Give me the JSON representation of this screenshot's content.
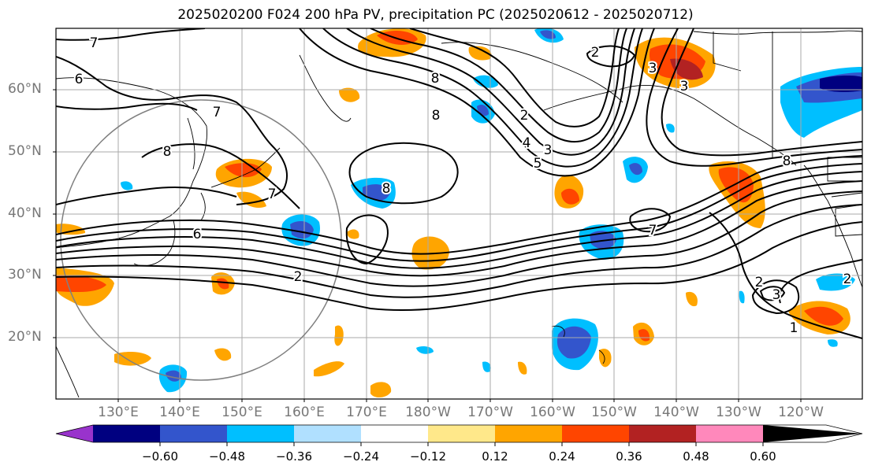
{
  "title": "2025020200 F024 200 hPa PV, precipitation PC (2025020612 - 2025020712)",
  "lat_labels": [
    "60°N",
    "50°N",
    "40°N",
    "30°N",
    "20°N"
  ],
  "lon_labels": [
    "130°E",
    "140°E",
    "150°E",
    "160°E",
    "170°E",
    "180°W",
    "170°W",
    "160°W",
    "150°W",
    "140°W",
    "130°W",
    "120°W"
  ],
  "colorbar": {
    "ticks": [
      "−0.60",
      "−0.48",
      "−0.36",
      "−0.24",
      "−0.12",
      "0.12",
      "0.24",
      "0.36",
      "0.48",
      "0.60"
    ],
    "colors": [
      "#9933cc",
      "#000080",
      "#3355cc",
      "#00bfff",
      "#b0e0ff",
      "#ffffff",
      "#ffe88a",
      "#ffa500",
      "#ff4500",
      "#b22222",
      "#ff88bb"
    ]
  },
  "contour_labels": [
    "7",
    "6",
    "7",
    "8",
    "7",
    "6",
    "2",
    "8",
    "8",
    "8",
    "2",
    "4",
    "3",
    "5",
    "2",
    "7",
    "3",
    "3",
    "2",
    "1",
    "2",
    "3",
    "8"
  ]
}
